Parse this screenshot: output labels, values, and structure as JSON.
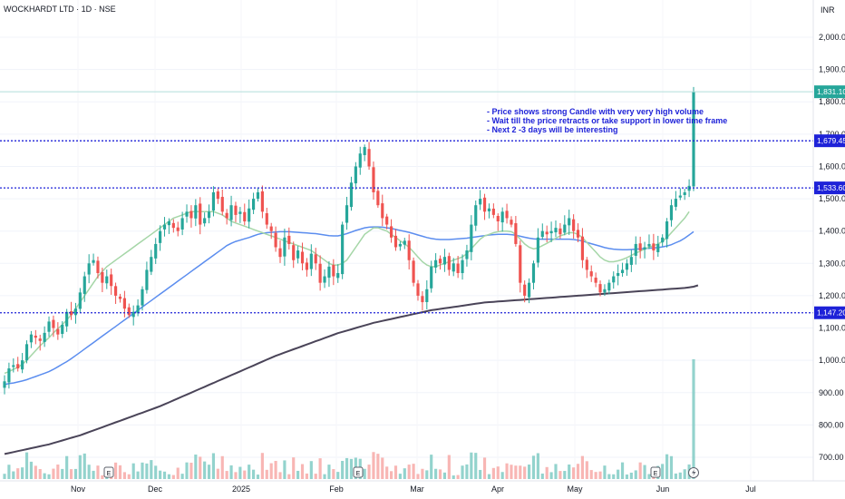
{
  "header": {
    "title": "WOCKHARDT LTD · 1D · NSE",
    "currency": "INR"
  },
  "chart_data": {
    "type": "candlestick",
    "y_axis": {
      "ticks": [
        "2,000.00",
        "1,900.00",
        "1,800.00",
        "1,700.00",
        "1,600.00",
        "1,500.00",
        "1,400.00",
        "1,300.00",
        "1,200.00",
        "1,100.00",
        "1,000.00",
        "900.00",
        "800.00",
        "700.00"
      ],
      "range": [
        620,
        2100
      ]
    },
    "x_axis": {
      "labels": [
        "Nov",
        "Dec",
        "2025",
        "Feb",
        "Mar",
        "Apr",
        "May",
        "Jun",
        "Jul"
      ]
    },
    "price_lines": [
      {
        "value": "1,831.10",
        "price": 1831.1,
        "color": "#b2dfdb",
        "style": "solid"
      },
      {
        "value": "1,679.45",
        "price": 1679.45,
        "color": "#1e22d8",
        "style": "dotted"
      },
      {
        "value": "1,533.60",
        "price": 1533.6,
        "color": "#1e22d8",
        "style": "dotted"
      },
      {
        "value": "1,147.20",
        "price": 1147.2,
        "color": "#1e22d8",
        "style": "dotted"
      }
    ],
    "annotation": [
      "- Price shows strong Candle with very very high volume",
      "- Wait till the price retracts or  take support in lower time frame",
      " - Next 2 -3 days will be interesting"
    ],
    "closes": [
      935,
      975,
      985,
      975,
      1000,
      1050,
      1080,
      1070,
      1060,
      1085,
      1120,
      1100,
      1080,
      1110,
      1150,
      1140,
      1160,
      1210,
      1260,
      1300,
      1310,
      1270,
      1240,
      1260,
      1230,
      1200,
      1190,
      1160,
      1140,
      1150,
      1170,
      1220,
      1280,
      1320,
      1360,
      1400,
      1420,
      1430,
      1410,
      1400,
      1440,
      1460,
      1440,
      1480,
      1420,
      1440,
      1460,
      1520,
      1500,
      1460,
      1440,
      1480,
      1450,
      1460,
      1430,
      1470,
      1500,
      1520,
      1460,
      1420,
      1400,
      1350,
      1320,
      1380,
      1360,
      1310,
      1340,
      1300,
      1280,
      1330,
      1300,
      1240,
      1260,
      1290,
      1260,
      1270,
      1420,
      1480,
      1550,
      1600,
      1640,
      1660,
      1600,
      1520,
      1480,
      1440,
      1420,
      1380,
      1350,
      1360,
      1370,
      1310,
      1240,
      1200,
      1180,
      1220,
      1290,
      1310,
      1300,
      1320,
      1280,
      1300,
      1270,
      1310,
      1340,
      1420,
      1480,
      1500,
      1460,
      1470,
      1450,
      1430,
      1460,
      1440,
      1420,
      1360,
      1240,
      1200,
      1240,
      1300,
      1380,
      1400,
      1390,
      1400,
      1410,
      1390,
      1420,
      1440,
      1400,
      1380,
      1310,
      1280,
      1260,
      1240,
      1210,
      1220,
      1240,
      1260,
      1270,
      1280,
      1300,
      1320,
      1360,
      1340,
      1350,
      1360,
      1340,
      1360,
      1380,
      1430,
      1480,
      1500,
      1510,
      1520,
      1540,
      1831
    ],
    "ema_fast": [
      960,
      965,
      972,
      978,
      988,
      1000,
      1015,
      1030,
      1045,
      1058,
      1070,
      1085,
      1098,
      1110,
      1125,
      1140,
      1160,
      1180,
      1200,
      1220,
      1240,
      1260,
      1275,
      1290,
      1300,
      1310,
      1320,
      1330,
      1340,
      1350,
      1360,
      1370,
      1380,
      1390,
      1400,
      1410,
      1420,
      1430,
      1440,
      1445,
      1450,
      1455,
      1460,
      1460,
      1460,
      1460,
      1460,
      1460,
      1455,
      1450,
      1440,
      1430,
      1425,
      1420,
      1415,
      1410,
      1405,
      1400,
      1395,
      1390,
      1385,
      1380,
      1375,
      1370,
      1365,
      1360,
      1355,
      1350,
      1345,
      1340,
      1330,
      1320,
      1310,
      1300,
      1295,
      1295,
      1300,
      1310,
      1330,
      1350,
      1370,
      1390,
      1400,
      1410,
      1410,
      1405,
      1400,
      1390,
      1380,
      1370,
      1360,
      1350,
      1335,
      1320,
      1305,
      1295,
      1290,
      1290,
      1295,
      1300,
      1305,
      1310,
      1315,
      1320,
      1330,
      1345,
      1360,
      1375,
      1385,
      1390,
      1395,
      1398,
      1400,
      1400,
      1398,
      1390,
      1375,
      1360,
      1350,
      1345,
      1348,
      1355,
      1362,
      1370,
      1378,
      1385,
      1390,
      1395,
      1395,
      1390,
      1380,
      1365,
      1350,
      1335,
      1320,
      1310,
      1305,
      1305,
      1308,
      1312,
      1318,
      1325,
      1332,
      1338,
      1345,
      1350,
      1355,
      1360,
      1368,
      1380,
      1395,
      1410,
      1425,
      1440,
      1460
    ],
    "ema_mid": [
      925,
      928,
      930,
      933,
      936,
      940,
      945,
      950,
      955,
      960,
      965,
      972,
      980,
      988,
      996,
      1005,
      1015,
      1025,
      1035,
      1045,
      1055,
      1065,
      1075,
      1085,
      1095,
      1105,
      1115,
      1125,
      1135,
      1145,
      1155,
      1165,
      1175,
      1185,
      1195,
      1205,
      1215,
      1225,
      1235,
      1245,
      1255,
      1265,
      1275,
      1285,
      1295,
      1305,
      1315,
      1325,
      1335,
      1345,
      1355,
      1362,
      1368,
      1372,
      1376,
      1380,
      1385,
      1390,
      1393,
      1395,
      1396,
      1397,
      1398,
      1398,
      1398,
      1397,
      1396,
      1395,
      1394,
      1393,
      1392,
      1390,
      1388,
      1386,
      1385,
      1385,
      1388,
      1392,
      1397,
      1402,
      1406,
      1410,
      1412,
      1413,
      1413,
      1412,
      1410,
      1408,
      1405,
      1402,
      1399,
      1396,
      1392,
      1388,
      1384,
      1380,
      1377,
      1375,
      1374,
      1374,
      1374,
      1375,
      1376,
      1377,
      1378,
      1380,
      1382,
      1384,
      1386,
      1388,
      1389,
      1390,
      1390,
      1390,
      1389,
      1387,
      1384,
      1381,
      1378,
      1376,
      1375,
      1375,
      1375,
      1375,
      1375,
      1375,
      1375,
      1375,
      1374,
      1372,
      1369,
      1365,
      1361,
      1357,
      1353,
      1349,
      1346,
      1344,
      1343,
      1342,
      1342,
      1343,
      1344,
      1345,
      1346,
      1347,
      1348,
      1349,
      1351,
      1354,
      1358,
      1364,
      1370,
      1378,
      1388,
      1398
    ],
    "sma_slow": [
      710,
      713,
      716,
      719,
      722,
      725,
      728,
      731,
      734,
      737,
      740,
      744,
      748,
      752,
      756,
      760,
      764,
      768,
      773,
      778,
      783,
      788,
      793,
      798,
      803,
      808,
      813,
      818,
      823,
      828,
      833,
      838,
      843,
      848,
      853,
      858,
      864,
      870,
      876,
      882,
      888,
      894,
      900,
      906,
      912,
      918,
      924,
      930,
      936,
      942,
      948,
      954,
      960,
      966,
      972,
      978,
      984,
      990,
      996,
      1002,
      1008,
      1014,
      1019,
      1024,
      1029,
      1034,
      1039,
      1044,
      1049,
      1054,
      1059,
      1064,
      1069,
      1074,
      1079,
      1084,
      1088,
      1092,
      1096,
      1100,
      1104,
      1108,
      1112,
      1116,
      1119,
      1122,
      1125,
      1128,
      1131,
      1134,
      1137,
      1140,
      1143,
      1146,
      1149,
      1152,
      1155,
      1157,
      1159,
      1161,
      1163,
      1165,
      1167,
      1169,
      1171,
      1173,
      1175,
      1177,
      1179,
      1180,
      1181,
      1182,
      1183,
      1184,
      1185,
      1186,
      1187,
      1188,
      1189,
      1190,
      1191,
      1192,
      1193,
      1194,
      1195,
      1196,
      1197,
      1198,
      1199,
      1200,
      1201,
      1202,
      1203,
      1204,
      1205,
      1206,
      1207,
      1208,
      1209,
      1210,
      1211,
      1212,
      1213,
      1214,
      1215,
      1216,
      1217,
      1218,
      1219,
      1220,
      1221,
      1222,
      1223,
      1224,
      1226,
      1228,
      1232
    ],
    "volume_notes": "Final session volume is several times the typical daily volume",
    "earnings_markers": [
      "E",
      "E",
      "E"
    ],
    "colors": {
      "up": "#26a69a",
      "down": "#ef5350",
      "ema_fast": "#a5d6a7",
      "ema_mid": "#5b8def",
      "sma_slow": "#4a4458",
      "note": "#1e22d8"
    }
  }
}
